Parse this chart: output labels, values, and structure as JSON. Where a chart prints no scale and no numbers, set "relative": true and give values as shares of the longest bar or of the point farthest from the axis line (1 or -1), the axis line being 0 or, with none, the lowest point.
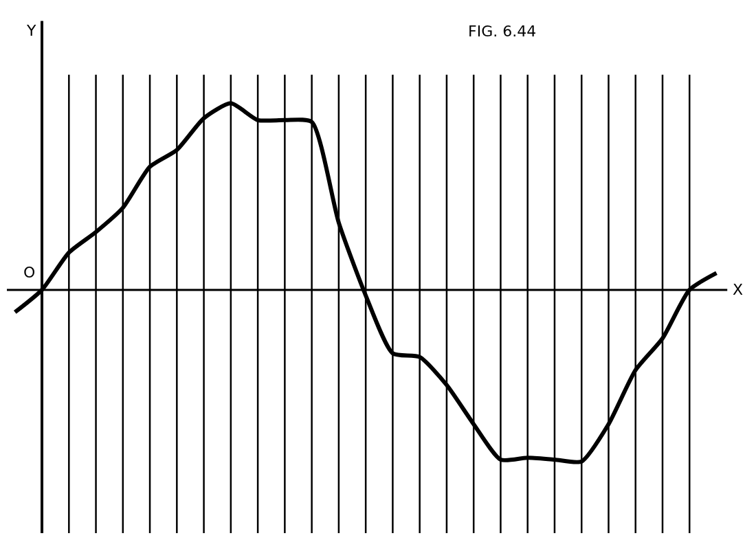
{
  "chart_data": {
    "type": "line",
    "title": "FIG. 6.44",
    "xlabel": "X",
    "ylabel": "Y",
    "annotations": [
      "O"
    ],
    "relative": true,
    "grid": "x",
    "color": "#000000",
    "categories": [
      null,
      null,
      null,
      null,
      null,
      null,
      null,
      null,
      null,
      null,
      null,
      null,
      null,
      null,
      null,
      null,
      null,
      null,
      null,
      null,
      null,
      null,
      null,
      null,
      null,
      null,
      null
    ],
    "values": [
      -0.12,
      0,
      0.2,
      0.31,
      0.44,
      0.66,
      0.75,
      0.92,
      1.0,
      0.91,
      0.91,
      0.9,
      0.36,
      -0.03,
      -0.34,
      -0.36,
      -0.51,
      -0.72,
      -0.91,
      -0.9,
      -0.91,
      -0.92,
      -0.72,
      -0.43,
      -0.26,
      0,
      0.09
    ]
  }
}
